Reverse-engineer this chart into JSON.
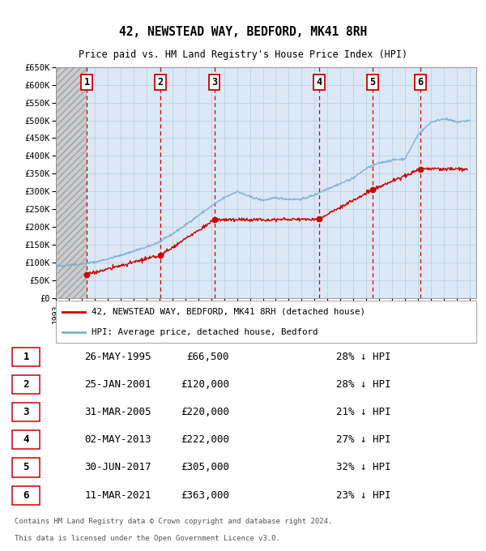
{
  "title": "42, NEWSTEAD WAY, BEDFORD, MK41 8RH",
  "subtitle": "Price paid vs. HM Land Registry's House Price Index (HPI)",
  "xlim": [
    1993,
    2025.5
  ],
  "ylim": [
    0,
    650000
  ],
  "yticks": [
    0,
    50000,
    100000,
    150000,
    200000,
    250000,
    300000,
    350000,
    400000,
    450000,
    500000,
    550000,
    600000,
    650000
  ],
  "ytick_labels": [
    "£0",
    "£50K",
    "£100K",
    "£150K",
    "£200K",
    "£250K",
    "£300K",
    "£350K",
    "£400K",
    "£450K",
    "£500K",
    "£550K",
    "£600K",
    "£650K"
  ],
  "transactions": [
    {
      "num": 1,
      "date": "26-MAY-1995",
      "year": 1995.4,
      "price": 66500,
      "pct": "28%",
      "label": "1"
    },
    {
      "num": 2,
      "date": "25-JAN-2001",
      "year": 2001.07,
      "price": 120000,
      "pct": "28%",
      "label": "2"
    },
    {
      "num": 3,
      "date": "31-MAR-2005",
      "year": 2005.25,
      "price": 220000,
      "pct": "21%",
      "label": "3"
    },
    {
      "num": 4,
      "date": "02-MAY-2013",
      "year": 2013.33,
      "price": 222000,
      "pct": "27%",
      "label": "4"
    },
    {
      "num": 5,
      "date": "30-JUN-2017",
      "year": 2017.5,
      "price": 305000,
      "pct": "32%",
      "label": "5"
    },
    {
      "num": 6,
      "date": "11-MAR-2021",
      "year": 2021.19,
      "price": 363000,
      "pct": "23%",
      "label": "6"
    }
  ],
  "hpi_color": "#7bafd4",
  "price_color": "#cc0000",
  "box_color": "#cc0000",
  "plot_bg": "#dce8f5",
  "grid_color": "#b8cfe0",
  "legend_label_price": "42, NEWSTEAD WAY, BEDFORD, MK41 8RH (detached house)",
  "legend_label_hpi": "HPI: Average price, detached house, Bedford",
  "footer_line1": "Contains HM Land Registry data © Crown copyright and database right 2024.",
  "footer_line2": "This data is licensed under the Open Government Licence v3.0.",
  "table_rows": [
    [
      "1",
      "26-MAY-1995",
      "£66,500",
      "28% ↓ HPI"
    ],
    [
      "2",
      "25-JAN-2001",
      "£120,000",
      "28% ↓ HPI"
    ],
    [
      "3",
      "31-MAR-2005",
      "£220,000",
      "21% ↓ HPI"
    ],
    [
      "4",
      "02-MAY-2013",
      "£222,000",
      "27% ↓ HPI"
    ],
    [
      "5",
      "30-JUN-2017",
      "£305,000",
      "32% ↓ HPI"
    ],
    [
      "6",
      "11-MAR-2021",
      "£363,000",
      "23% ↓ HPI"
    ]
  ]
}
